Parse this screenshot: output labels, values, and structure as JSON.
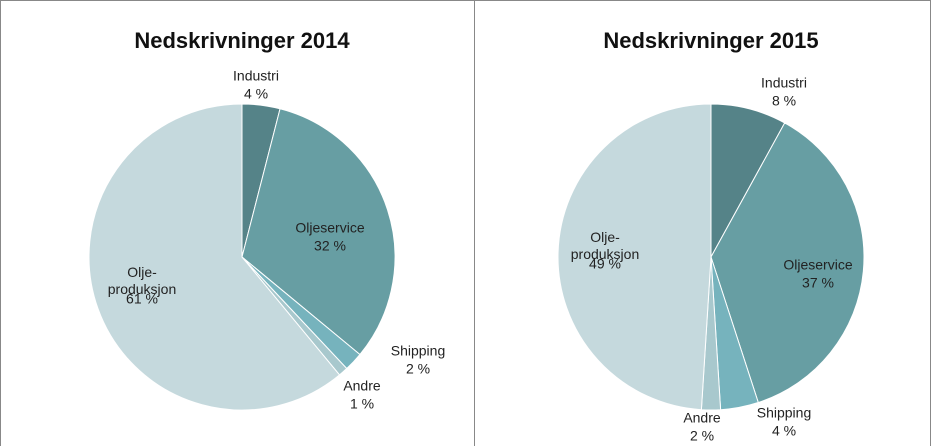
{
  "chart_data": [
    {
      "type": "pie",
      "title": "Nedskrivninger 2014",
      "categories": [
        "Industri",
        "Oljeservice",
        "Shipping",
        "Andre",
        "Olje-produksjon"
      ],
      "values": [
        4,
        32,
        2,
        1,
        61
      ],
      "value_labels": [
        "4 %",
        "32 %",
        "2 %",
        "1 %",
        "61 %"
      ],
      "colors": [
        "#558388",
        "#679ea3",
        "#76b3bd",
        "#a8c8cd",
        "#c5d9dd"
      ]
    },
    {
      "type": "pie",
      "title": "Nedskrivninger 2015",
      "categories": [
        "Industri",
        "Oljeservice",
        "Shipping",
        "Andre",
        "Olje-produksjon"
      ],
      "values": [
        8,
        37,
        4,
        2,
        49
      ],
      "value_labels": [
        "8 %",
        "37 %",
        "4 %",
        "2 %",
        "49 %"
      ],
      "colors": [
        "#558388",
        "#679ea3",
        "#76b3bd",
        "#a8c8cd",
        "#c5d9dd"
      ]
    }
  ]
}
